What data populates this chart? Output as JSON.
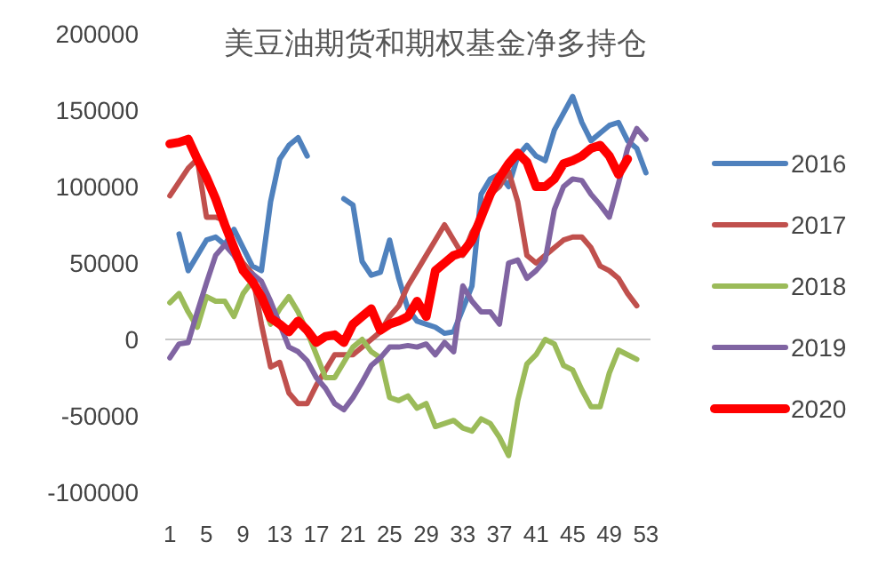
{
  "chart_data": {
    "type": "line",
    "title": "美豆油期货和期权基金净多持仓",
    "x": [
      1,
      2,
      3,
      4,
      5,
      6,
      7,
      8,
      9,
      10,
      11,
      12,
      13,
      14,
      15,
      16,
      17,
      18,
      19,
      20,
      21,
      22,
      23,
      24,
      25,
      26,
      27,
      28,
      29,
      30,
      31,
      32,
      33,
      34,
      35,
      36,
      37,
      38,
      39,
      40,
      41,
      42,
      43,
      44,
      45,
      46,
      47,
      48,
      49,
      50,
      51,
      52,
      53
    ],
    "xlim": [
      0.5,
      53.5
    ],
    "xticks": [
      1,
      5,
      9,
      13,
      17,
      21,
      25,
      29,
      33,
      37,
      41,
      45,
      49,
      53
    ],
    "ylim": [
      -100000,
      200000
    ],
    "yticks": [
      -100000,
      -50000,
      0,
      50000,
      100000,
      150000,
      200000
    ],
    "grid": false,
    "ref_lines": [
      {
        "axis": "y",
        "value": 0,
        "color": "#c8c8c8"
      }
    ],
    "legend": "right",
    "marker": "none",
    "line_style": "solid",
    "series": [
      {
        "name": "2016",
        "color": "#4f81bd",
        "values": [
          null,
          69000,
          45000,
          55000,
          65000,
          67000,
          62000,
          72000,
          60000,
          48000,
          45000,
          90000,
          118000,
          127000,
          132000,
          120000,
          null,
          null,
          null,
          92000,
          88000,
          51000,
          42000,
          44000,
          65000,
          40000,
          20000,
          12000,
          10000,
          8000,
          4000,
          5000,
          20000,
          35000,
          95000,
          105000,
          108000,
          100000,
          120000,
          127000,
          120000,
          117000,
          137000,
          148000,
          159000,
          142000,
          130000,
          135000,
          140000,
          142000,
          130000,
          125000,
          109000
        ]
      },
      {
        "name": "2017",
        "color": "#c0504d",
        "values": [
          94000,
          103000,
          112000,
          118000,
          80000,
          80000,
          78000,
          60000,
          50000,
          43000,
          10000,
          -18000,
          -15000,
          -35000,
          -42000,
          -42000,
          -30000,
          -20000,
          -10000,
          -10000,
          -10000,
          -5000,
          0,
          5000,
          15000,
          22000,
          35000,
          45000,
          55000,
          65000,
          75000,
          65000,
          55000,
          70000,
          80000,
          95000,
          100000,
          110000,
          90000,
          55000,
          50000,
          55000,
          60000,
          65000,
          67000,
          67000,
          60000,
          48000,
          45000,
          40000,
          30000,
          22000,
          null
        ]
      },
      {
        "name": "2018",
        "color": "#9bbb59",
        "values": [
          24000,
          30000,
          18000,
          8000,
          28000,
          25000,
          25000,
          15000,
          30000,
          38000,
          27000,
          10000,
          20000,
          28000,
          18000,
          5000,
          -10000,
          -25000,
          -25000,
          -15000,
          -5000,
          0,
          -8000,
          -12000,
          -38000,
          -40000,
          -37000,
          -45000,
          -42000,
          -57000,
          -55000,
          -53000,
          -58000,
          -60000,
          -52000,
          -55000,
          -64000,
          -76000,
          -40000,
          -16000,
          -10000,
          0,
          -3000,
          -17000,
          -20000,
          -33000,
          -44000,
          -44000,
          -22000,
          -7000,
          -10000,
          -13000,
          null
        ]
      },
      {
        "name": "2019",
        "color": "#8064a2",
        "values": [
          -12000,
          -3000,
          -2000,
          18000,
          37000,
          55000,
          62000,
          55000,
          45000,
          43000,
          38000,
          25000,
          10000,
          -5000,
          -8000,
          -14000,
          -25000,
          -32000,
          -42000,
          -46000,
          -38000,
          -28000,
          -17000,
          -12000,
          -5000,
          -5000,
          -4000,
          -5000,
          -3000,
          -10000,
          -2000,
          -8000,
          35000,
          25000,
          18000,
          18000,
          10000,
          50000,
          52000,
          40000,
          45000,
          52000,
          85000,
          100000,
          105000,
          104000,
          95000,
          88000,
          80000,
          102000,
          125000,
          138000,
          131000
        ]
      },
      {
        "name": "2020",
        "color": "#ff0000",
        "values": [
          128000,
          129000,
          131000,
          118000,
          106000,
          92000,
          75000,
          60000,
          45000,
          38000,
          28000,
          14000,
          10000,
          5000,
          12000,
          6000,
          -2000,
          2000,
          3000,
          -2000,
          10000,
          15000,
          20000,
          6000,
          10000,
          12000,
          15000,
          25000,
          15000,
          45000,
          50000,
          55000,
          57000,
          65000,
          80000,
          95000,
          106000,
          115000,
          122000,
          116000,
          100000,
          100000,
          105000,
          115000,
          117000,
          120000,
          125000,
          127000,
          120000,
          108000,
          118000,
          null,
          null
        ]
      }
    ]
  }
}
